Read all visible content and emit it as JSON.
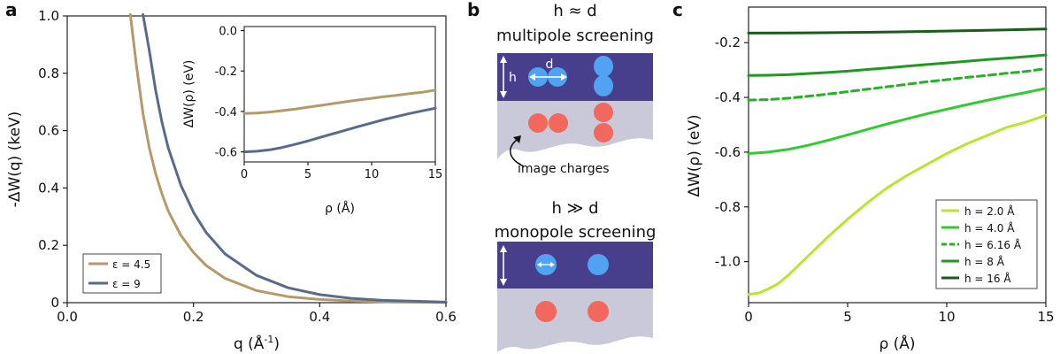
{
  "colors": {
    "tan": "#B49A6A",
    "slate": "#5A6B8A",
    "substrate": "#473E8C",
    "underlayer": "#C9C9D9",
    "electron_blue": "#4FA3F2",
    "hole_red": "#F2685C",
    "h2": "#B8E62E",
    "h4": "#2ECC2E",
    "h616": "#22B322",
    "h8": "#1E9A1E",
    "h16": "#1A5C1A"
  },
  "panel_a": {
    "letter": "a",
    "xlabel": "q (Å",
    "xlabel_sup": "-1",
    "xlabel_end": ")",
    "ylabel": "-ΔW(q) (keV)",
    "xticks": [
      "0.0",
      "0.2",
      "0.4",
      "0.6"
    ],
    "yticks": [
      "0",
      "0.2",
      "0.4",
      "0.6",
      "0.8",
      "1.0"
    ],
    "legend": [
      "ε = 4.5",
      "ε = 9"
    ],
    "inset": {
      "xlabel": "ρ (Å)",
      "ylabel": "ΔW(ρ) (eV)",
      "xticks": [
        "0",
        "5",
        "10",
        "15"
      ],
      "yticks": [
        "0.0",
        "-0.2",
        "-0.4",
        "-0.6"
      ]
    }
  },
  "panel_b": {
    "letter": "b",
    "top_title_1": "h ≈ d",
    "top_title_2": "multipole screening",
    "label_h": "h",
    "label_d": "d",
    "image_charges": "image charges",
    "bottom_title_1": "h ≫ d",
    "bottom_title_2": "monopole screening"
  },
  "panel_c": {
    "letter": "c",
    "xlabel": "ρ (Å)",
    "ylabel": "ΔW(ρ) (eV)",
    "xticks": [
      "0",
      "5",
      "10",
      "15"
    ],
    "yticks": [
      "-0.2",
      "-0.4",
      "-0.6",
      "-0.8",
      "-1.0"
    ],
    "legend": [
      "h = 2.0 Å",
      "h = 4.0 Å",
      "h = 6.16 Å",
      "h = 8 Å",
      "h = 16 Å"
    ]
  },
  "chart_data": [
    {
      "type": "line",
      "xlim": [
        0,
        0.6
      ],
      "ylim": [
        0,
        1.0
      ],
      "series": [
        {
          "name": "ε = 4.5",
          "x": [
            0.1,
            0.11,
            0.12,
            0.13,
            0.14,
            0.15,
            0.16,
            0.18,
            0.2,
            0.22,
            0.25,
            0.3,
            0.35,
            0.4,
            0.45,
            0.5,
            0.6
          ],
          "y": [
            1.05,
            0.82,
            0.66,
            0.54,
            0.45,
            0.38,
            0.32,
            0.235,
            0.175,
            0.13,
            0.085,
            0.042,
            0.021,
            0.011,
            0.006,
            0.003,
            0.001
          ]
        },
        {
          "name": "ε = 9",
          "x": [
            0.12,
            0.13,
            0.14,
            0.15,
            0.16,
            0.18,
            0.2,
            0.22,
            0.25,
            0.3,
            0.35,
            0.4,
            0.45,
            0.5,
            0.6
          ],
          "y": [
            1.05,
            0.88,
            0.74,
            0.63,
            0.54,
            0.41,
            0.315,
            0.245,
            0.17,
            0.095,
            0.052,
            0.028,
            0.015,
            0.008,
            0.002
          ]
        }
      ]
    },
    {
      "type": "line",
      "xlim": [
        0,
        15
      ],
      "ylim": [
        -0.65,
        0.02
      ],
      "series": [
        {
          "name": "ε = 4.5",
          "x": [
            0,
            1,
            2,
            3,
            4,
            5,
            6,
            7,
            8,
            9,
            10,
            11,
            12,
            13,
            14,
            15
          ],
          "y": [
            -0.41,
            -0.408,
            -0.403,
            -0.396,
            -0.388,
            -0.379,
            -0.37,
            -0.361,
            -0.352,
            -0.343,
            -0.335,
            -0.327,
            -0.32,
            -0.312,
            -0.305,
            -0.295
          ]
        },
        {
          "name": "ε = 9",
          "x": [
            0,
            1,
            2,
            3,
            4,
            5,
            6,
            7,
            8,
            9,
            10,
            11,
            12,
            13,
            14,
            15
          ],
          "y": [
            -0.6,
            -0.597,
            -0.59,
            -0.578,
            -0.563,
            -0.546,
            -0.528,
            -0.51,
            -0.492,
            -0.474,
            -0.457,
            -0.44,
            -0.425,
            -0.41,
            -0.397,
            -0.384
          ]
        }
      ]
    },
    {
      "type": "line",
      "xlabel": "ρ (Å)",
      "ylabel": "ΔW(ρ) (eV)",
      "xlim": [
        0,
        15
      ],
      "ylim": [
        -1.15,
        -0.07
      ],
      "legend_position": "bottom-right",
      "series": [
        {
          "name": "h = 2.0 Å",
          "style": "solid",
          "x": [
            0,
            0.5,
            1,
            1.5,
            2,
            3,
            4,
            5,
            6,
            7,
            8,
            9,
            10,
            11,
            12,
            13,
            14,
            15
          ],
          "y": [
            -1.12,
            -1.115,
            -1.1,
            -1.08,
            -1.05,
            -0.98,
            -0.91,
            -0.845,
            -0.785,
            -0.73,
            -0.685,
            -0.645,
            -0.605,
            -0.57,
            -0.54,
            -0.51,
            -0.49,
            -0.465
          ]
        },
        {
          "name": "h = 4.0 Å",
          "style": "solid",
          "x": [
            0,
            1,
            2,
            3,
            4,
            5,
            6,
            7,
            8,
            9,
            10,
            11,
            12,
            13,
            14,
            15
          ],
          "y": [
            -0.605,
            -0.6,
            -0.59,
            -0.575,
            -0.557,
            -0.537,
            -0.517,
            -0.497,
            -0.478,
            -0.46,
            -0.443,
            -0.427,
            -0.411,
            -0.396,
            -0.382,
            -0.367
          ]
        },
        {
          "name": "h = 6.16 Å",
          "style": "dashed",
          "x": [
            0,
            1,
            2,
            3,
            4,
            5,
            6,
            7,
            8,
            9,
            10,
            11,
            12,
            13,
            14,
            15
          ],
          "y": [
            -0.41,
            -0.408,
            -0.403,
            -0.396,
            -0.388,
            -0.379,
            -0.37,
            -0.361,
            -0.352,
            -0.343,
            -0.335,
            -0.327,
            -0.32,
            -0.312,
            -0.305,
            -0.295
          ]
        },
        {
          "name": "h = 8 Å",
          "style": "solid",
          "x": [
            0,
            1,
            2,
            3,
            4,
            5,
            6,
            7,
            8,
            9,
            10,
            11,
            12,
            13,
            14,
            15
          ],
          "y": [
            -0.32,
            -0.319,
            -0.317,
            -0.313,
            -0.309,
            -0.304,
            -0.298,
            -0.292,
            -0.286,
            -0.28,
            -0.274,
            -0.268,
            -0.262,
            -0.257,
            -0.251,
            -0.245
          ]
        },
        {
          "name": "h = 16 Å",
          "style": "solid",
          "x": [
            0,
            3,
            6,
            9,
            12,
            15
          ],
          "y": [
            -0.165,
            -0.164,
            -0.162,
            -0.159,
            -0.155,
            -0.15
          ]
        }
      ]
    }
  ]
}
